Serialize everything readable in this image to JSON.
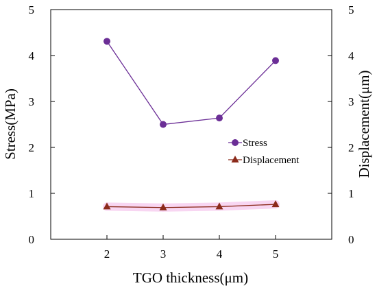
{
  "chart_data": {
    "type": "line",
    "xlabel": "TGO thickness(μm)",
    "ylabel": "Stress(MPa)",
    "y2label": "Displacement(μm)",
    "x_ticks": [
      "2",
      "3",
      "4",
      "5"
    ],
    "y_ticks": [
      "0",
      "1",
      "2",
      "3",
      "4",
      "5"
    ],
    "y2_ticks": [
      "0",
      "1",
      "2",
      "3",
      "4",
      "5"
    ],
    "xlim": [
      1,
      6
    ],
    "ylim": [
      0,
      5
    ],
    "y2lim": [
      0,
      5
    ],
    "grid": false,
    "legend_position": "center-right",
    "x": [
      2,
      3,
      4,
      5
    ],
    "series": [
      {
        "name": "Stress",
        "axis": "left",
        "marker": "circle",
        "color": "#6b2e96",
        "values": [
          4.31,
          2.5,
          2.64,
          3.89
        ]
      },
      {
        "name": "Displacement",
        "axis": "right",
        "marker": "triangle",
        "color": "#8b2a1a",
        "values": [
          0.71,
          0.69,
          0.71,
          0.76
        ]
      }
    ]
  }
}
